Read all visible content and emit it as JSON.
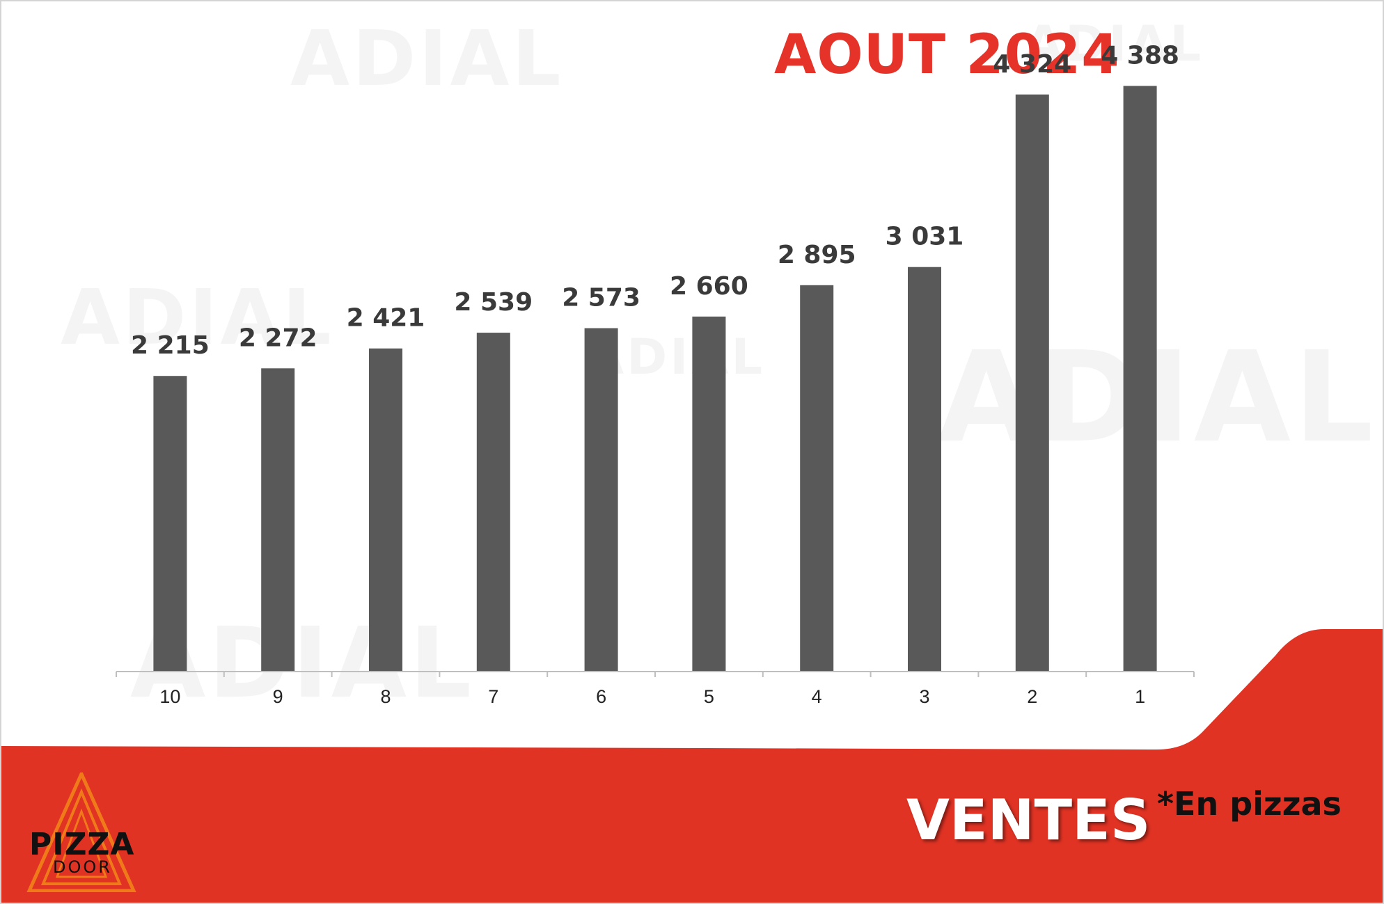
{
  "header": {
    "title": "AOUT 2024"
  },
  "watermark": {
    "text": "ADIAL"
  },
  "chart_data": {
    "type": "bar",
    "title": "AOUT 2024",
    "categories": [
      "10",
      "9",
      "8",
      "7",
      "6",
      "5",
      "4",
      "3",
      "2",
      "1"
    ],
    "values": [
      2215,
      2272,
      2421,
      2539,
      2573,
      2660,
      2895,
      3031,
      4324,
      4388
    ],
    "value_labels": [
      "2 215",
      "2 272",
      "2 421",
      "2 539",
      "2 573",
      "2 660",
      "2 895",
      "3 031",
      "4 324",
      "4 388"
    ],
    "xlabel": "",
    "ylabel": "",
    "ylim": [
      0,
      4500
    ],
    "grid": false,
    "bar_color": "#595959"
  },
  "footer": {
    "label": "VENTES",
    "unit_note": "*En pizzas",
    "background_color": "#e03324"
  },
  "logo": {
    "line1": "PIZZA",
    "line2": "DOOR",
    "accent_color": "#f07a1a"
  }
}
